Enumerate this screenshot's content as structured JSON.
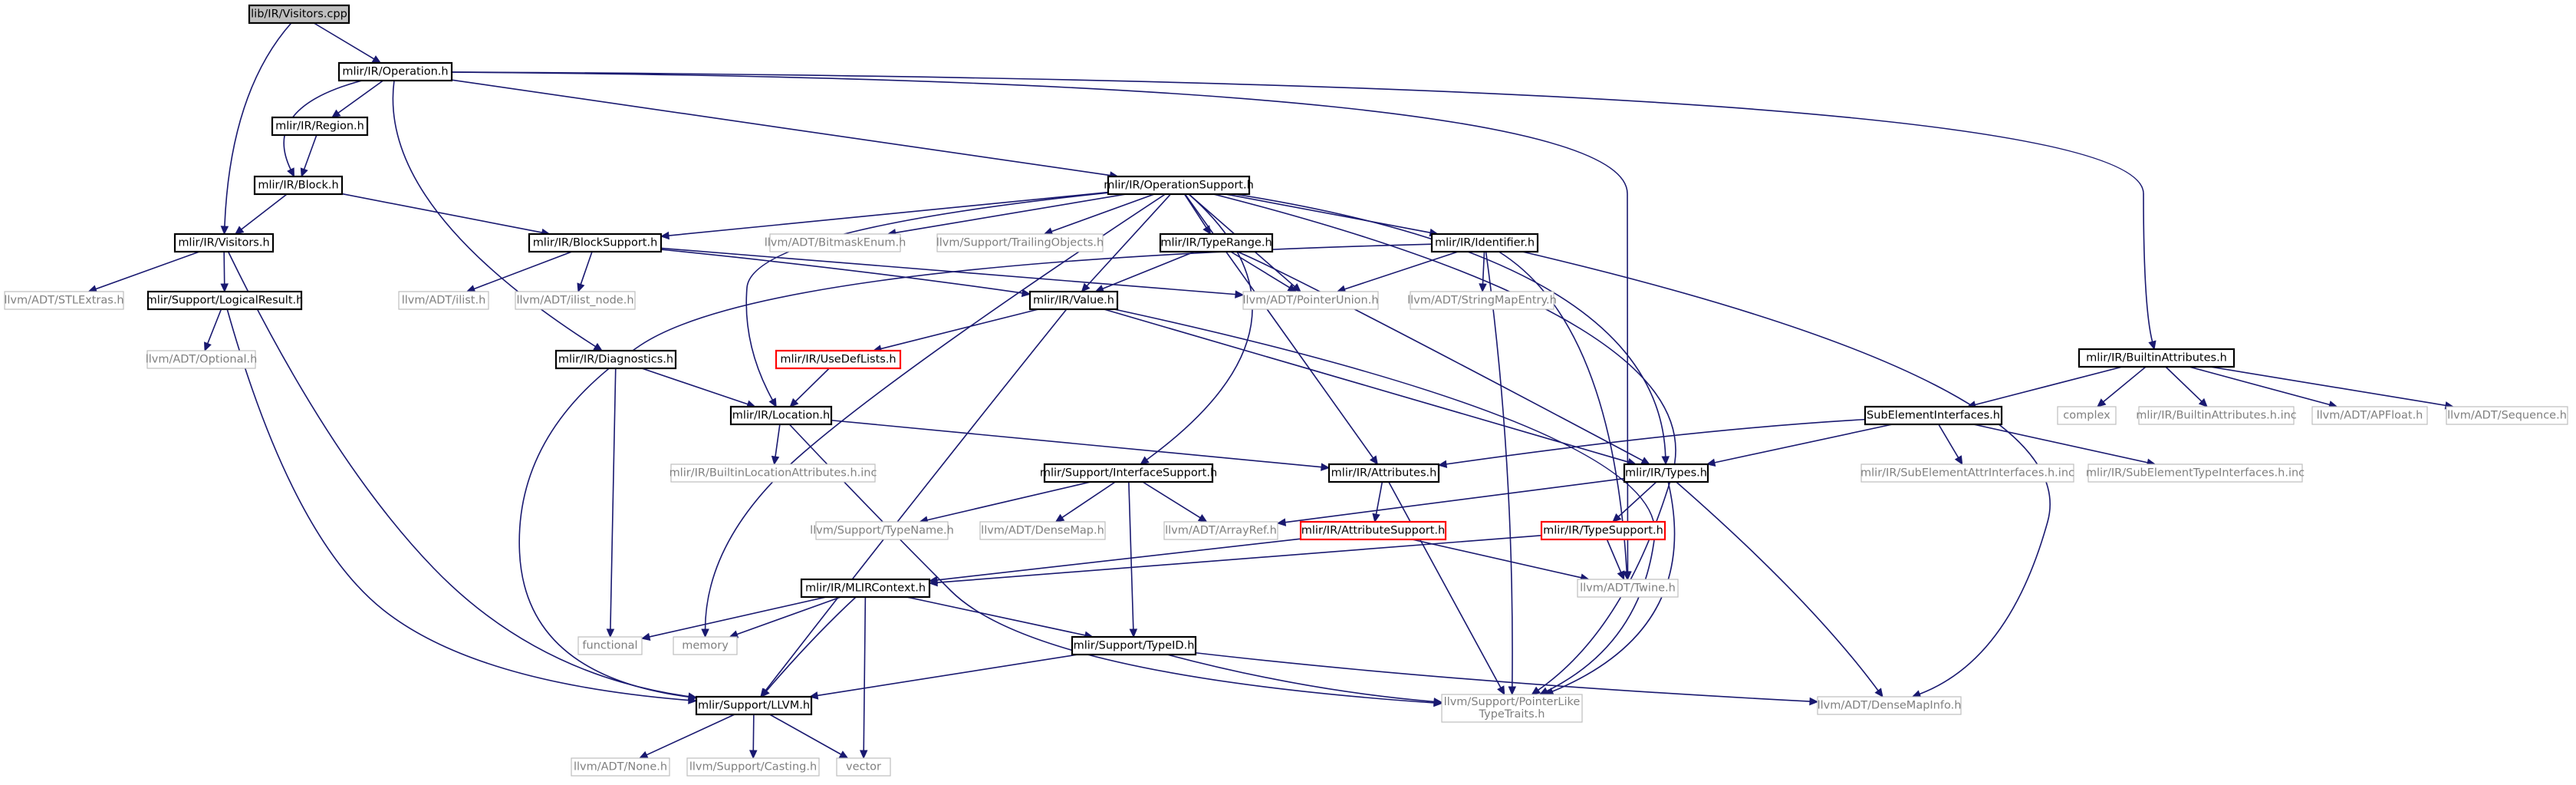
{
  "colors": {
    "edge": "#191970",
    "internal_border": "#000000",
    "internal_text": "#000000",
    "external_border": "#bfbfbf",
    "external_text": "#7f7f7f",
    "truncated_border": "#ff0000",
    "root_fill": "#bfbfbf"
  },
  "nodes": [
    {
      "id": "root",
      "label": "lib/IR/Visitors.cpp",
      "kind": "root"
    },
    {
      "id": "operation",
      "label": "mlir/IR/Operation.h",
      "kind": "internal"
    },
    {
      "id": "region",
      "label": "mlir/IR/Region.h",
      "kind": "internal"
    },
    {
      "id": "block",
      "label": "mlir/IR/Block.h",
      "kind": "internal"
    },
    {
      "id": "visitors",
      "label": "mlir/IR/Visitors.h",
      "kind": "internal"
    },
    {
      "id": "stlextras",
      "label": "llvm/ADT/STLExtras.h",
      "kind": "external"
    },
    {
      "id": "logicalresult",
      "label": "mlir/Support/LogicalResult.h",
      "kind": "internal"
    },
    {
      "id": "optional",
      "label": "llvm/ADT/Optional.h",
      "kind": "external"
    },
    {
      "id": "opsupport",
      "label": "mlir/IR/OperationSupport.h",
      "kind": "internal"
    },
    {
      "id": "blocksupport",
      "label": "mlir/IR/BlockSupport.h",
      "kind": "internal"
    },
    {
      "id": "ilist",
      "label": "llvm/ADT/ilist.h",
      "kind": "external"
    },
    {
      "id": "ilistnode",
      "label": "llvm/ADT/ilist_node.h",
      "kind": "external"
    },
    {
      "id": "bitmask",
      "label": "llvm/ADT/BitmaskEnum.h",
      "kind": "external"
    },
    {
      "id": "trailing",
      "label": "llvm/Support/TrailingObjects.h",
      "kind": "external"
    },
    {
      "id": "typerange",
      "label": "mlir/IR/TypeRange.h",
      "kind": "internal"
    },
    {
      "id": "identifier",
      "label": "mlir/IR/Identifier.h",
      "kind": "internal"
    },
    {
      "id": "pointerunion",
      "label": "llvm/ADT/PointerUnion.h",
      "kind": "external"
    },
    {
      "id": "value",
      "label": "mlir/IR/Value.h",
      "kind": "internal"
    },
    {
      "id": "stringmapentry",
      "label": "llvm/ADT/StringMapEntry.h",
      "kind": "external"
    },
    {
      "id": "diagnostics",
      "label": "mlir/IR/Diagnostics.h",
      "kind": "internal"
    },
    {
      "id": "usedeflists",
      "label": "mlir/IR/UseDefLists.h",
      "kind": "truncated"
    },
    {
      "id": "location",
      "label": "mlir/IR/Location.h",
      "kind": "internal"
    },
    {
      "id": "builtinlocattrs",
      "label": "mlir/IR/BuiltinLocationAttributes.h.inc",
      "kind": "external"
    },
    {
      "id": "interfacesupport",
      "label": "mlir/Support/InterfaceSupport.h",
      "kind": "internal"
    },
    {
      "id": "attributes",
      "label": "mlir/IR/Attributes.h",
      "kind": "internal"
    },
    {
      "id": "types",
      "label": "mlir/IR/Types.h",
      "kind": "internal"
    },
    {
      "id": "typename",
      "label": "llvm/Support/TypeName.h",
      "kind": "external"
    },
    {
      "id": "densemap",
      "label": "llvm/ADT/DenseMap.h",
      "kind": "external"
    },
    {
      "id": "arrayref",
      "label": "llvm/ADT/ArrayRef.h",
      "kind": "external"
    },
    {
      "id": "attributesupport",
      "label": "mlir/IR/AttributeSupport.h",
      "kind": "truncated"
    },
    {
      "id": "typesupport",
      "label": "mlir/IR/TypeSupport.h",
      "kind": "truncated"
    },
    {
      "id": "twine",
      "label": "llvm/ADT/Twine.h",
      "kind": "external"
    },
    {
      "id": "mlircontext",
      "label": "mlir/IR/MLIRContext.h",
      "kind": "internal"
    },
    {
      "id": "functional",
      "label": "functional",
      "kind": "external"
    },
    {
      "id": "memory",
      "label": "memory",
      "kind": "external"
    },
    {
      "id": "typeid",
      "label": "mlir/Support/TypeID.h",
      "kind": "internal"
    },
    {
      "id": "llvmh",
      "label": "mlir/Support/LLVM.h",
      "kind": "internal"
    },
    {
      "id": "none",
      "label": "llvm/ADT/None.h",
      "kind": "external"
    },
    {
      "id": "casting",
      "label": "llvm/Support/Casting.h",
      "kind": "external"
    },
    {
      "id": "vector",
      "label": "vector",
      "kind": "external"
    },
    {
      "id": "ptrliketraits",
      "label": "llvm/Support/PointerLike\nTypeTraits.h",
      "kind": "external"
    },
    {
      "id": "densemapinfo",
      "label": "llvm/ADT/DenseMapInfo.h",
      "kind": "external"
    },
    {
      "id": "builtinattrs",
      "label": "mlir/IR/BuiltinAttributes.h",
      "kind": "internal"
    },
    {
      "id": "subelem",
      "label": "SubElementInterfaces.h",
      "kind": "internal"
    },
    {
      "id": "complex",
      "label": "complex",
      "kind": "external"
    },
    {
      "id": "builtinattrsinc",
      "label": "mlir/IR/BuiltinAttributes.h.inc",
      "kind": "external"
    },
    {
      "id": "apfloat",
      "label": "llvm/ADT/APFloat.h",
      "kind": "external"
    },
    {
      "id": "sequence",
      "label": "llvm/ADT/Sequence.h",
      "kind": "external"
    },
    {
      "id": "subelemattr",
      "label": "mlir/IR/SubElementAttrInterfaces.h.inc",
      "kind": "external"
    },
    {
      "id": "subelemtype",
      "label": "mlir/IR/SubElementTypeInterfaces.h.inc",
      "kind": "external"
    }
  ],
  "edges": [
    [
      "root",
      "operation"
    ],
    [
      "root",
      "visitors"
    ],
    [
      "operation",
      "region"
    ],
    [
      "operation",
      "block"
    ],
    [
      "operation",
      "opsupport"
    ],
    [
      "operation",
      "diagnostics"
    ],
    [
      "operation",
      "twine"
    ],
    [
      "operation",
      "builtinattrs"
    ],
    [
      "region",
      "block"
    ],
    [
      "block",
      "visitors"
    ],
    [
      "block",
      "blocksupport"
    ],
    [
      "visitors",
      "stlextras"
    ],
    [
      "visitors",
      "logicalresult"
    ],
    [
      "visitors",
      "llvmh"
    ],
    [
      "logicalresult",
      "optional"
    ],
    [
      "logicalresult",
      "llvmh"
    ],
    [
      "opsupport",
      "blocksupport"
    ],
    [
      "opsupport",
      "bitmask"
    ],
    [
      "opsupport",
      "trailing"
    ],
    [
      "opsupport",
      "typerange"
    ],
    [
      "opsupport",
      "identifier"
    ],
    [
      "opsupport",
      "pointerunion"
    ],
    [
      "opsupport",
      "value"
    ],
    [
      "opsupport",
      "location"
    ],
    [
      "opsupport",
      "memory"
    ],
    [
      "opsupport",
      "interfacesupport"
    ],
    [
      "opsupport",
      "attributes"
    ],
    [
      "opsupport",
      "types"
    ],
    [
      "opsupport",
      "ptrliketraits"
    ],
    [
      "blocksupport",
      "ilist"
    ],
    [
      "blocksupport",
      "ilistnode"
    ],
    [
      "blocksupport",
      "value"
    ],
    [
      "blocksupport",
      "pointerunion"
    ],
    [
      "typerange",
      "value"
    ],
    [
      "typerange",
      "pointerunion"
    ],
    [
      "typerange",
      "types"
    ],
    [
      "identifier",
      "pointerunion"
    ],
    [
      "identifier",
      "stringmapentry"
    ],
    [
      "identifier",
      "llvmh"
    ],
    [
      "identifier",
      "ptrliketraits"
    ],
    [
      "identifier",
      "twine"
    ],
    [
      "identifier",
      "densemapinfo"
    ],
    [
      "value",
      "usedeflists"
    ],
    [
      "value",
      "types"
    ],
    [
      "value",
      "llvmh"
    ],
    [
      "value",
      "ptrliketraits"
    ],
    [
      "diagnostics",
      "location"
    ],
    [
      "diagnostics",
      "functional"
    ],
    [
      "usedeflists",
      "location"
    ],
    [
      "location",
      "builtinlocattrs"
    ],
    [
      "location",
      "attributes"
    ],
    [
      "location",
      "ptrliketraits"
    ],
    [
      "interfacesupport",
      "typename"
    ],
    [
      "interfacesupport",
      "densemap"
    ],
    [
      "interfacesupport",
      "arrayref"
    ],
    [
      "interfacesupport",
      "typeid"
    ],
    [
      "attributes",
      "attributesupport"
    ],
    [
      "attributes",
      "ptrliketraits"
    ],
    [
      "types",
      "arrayref"
    ],
    [
      "types",
      "typesupport"
    ],
    [
      "types",
      "ptrliketraits"
    ],
    [
      "types",
      "densemapinfo"
    ],
    [
      "attributesupport",
      "mlircontext"
    ],
    [
      "attributesupport",
      "twine"
    ],
    [
      "typesupport",
      "mlircontext"
    ],
    [
      "typesupport",
      "twine"
    ],
    [
      "mlircontext",
      "functional"
    ],
    [
      "mlircontext",
      "memory"
    ],
    [
      "mlircontext",
      "llvmh"
    ],
    [
      "mlircontext",
      "typeid"
    ],
    [
      "mlircontext",
      "vector"
    ],
    [
      "typeid",
      "llvmh"
    ],
    [
      "typeid",
      "ptrliketraits"
    ],
    [
      "typeid",
      "densemapinfo"
    ],
    [
      "llvmh",
      "none"
    ],
    [
      "llvmh",
      "casting"
    ],
    [
      "llvmh",
      "vector"
    ],
    [
      "builtinattrs",
      "subelem"
    ],
    [
      "builtinattrs",
      "complex"
    ],
    [
      "builtinattrs",
      "builtinattrsinc"
    ],
    [
      "builtinattrs",
      "apfloat"
    ],
    [
      "builtinattrs",
      "sequence"
    ],
    [
      "subelem",
      "attributes"
    ],
    [
      "subelem",
      "types"
    ],
    [
      "subelem",
      "subelemattr"
    ],
    [
      "subelem",
      "subelemtype"
    ]
  ]
}
